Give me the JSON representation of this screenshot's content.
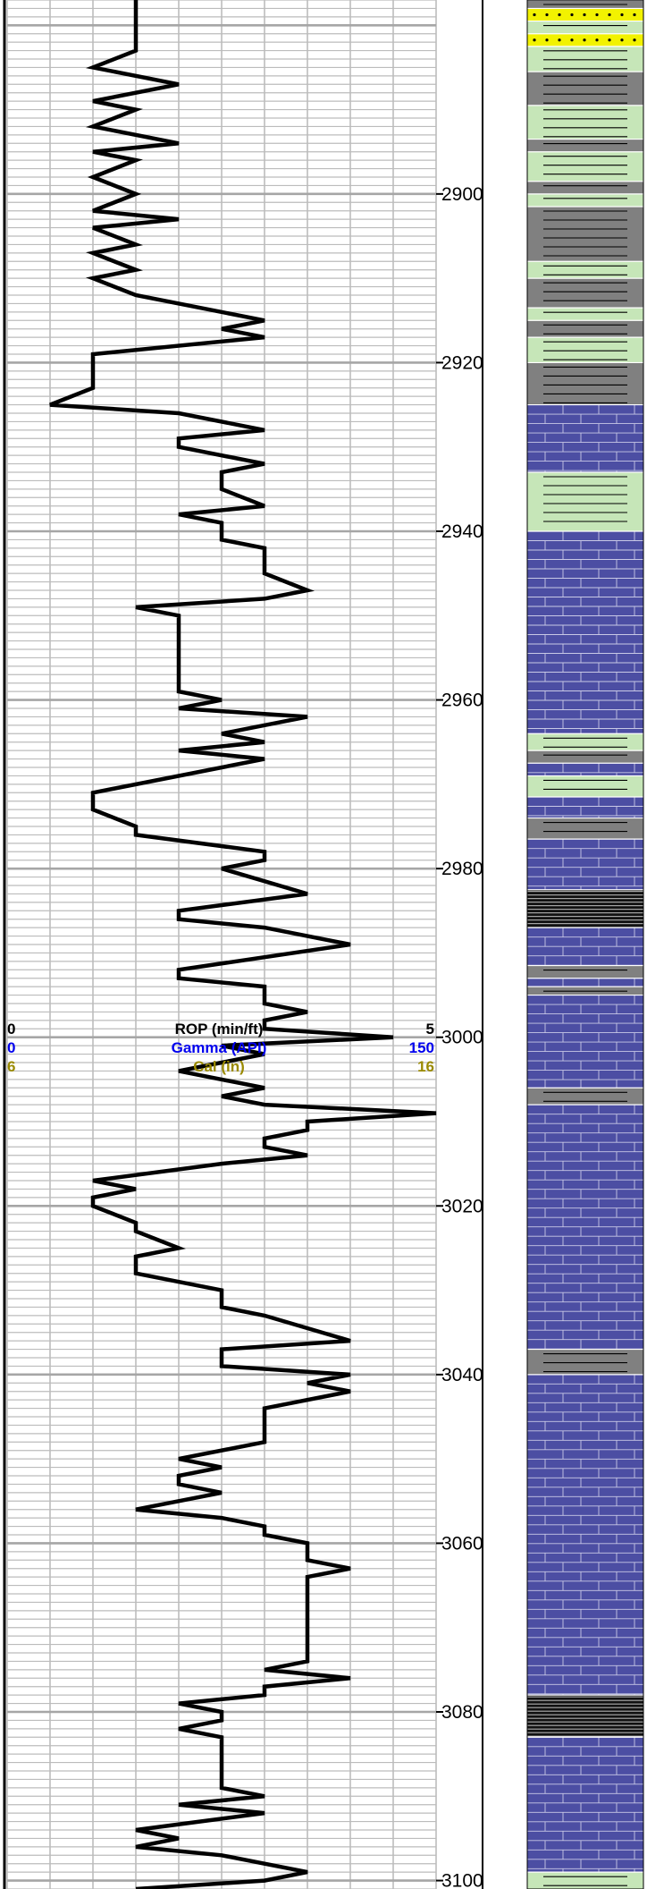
{
  "chart_data": {
    "type": "line",
    "track_header": {
      "rop": {
        "label": "ROP (min/ft)",
        "min": "0",
        "max": "5",
        "color": "#000000"
      },
      "gamma": {
        "label": "Gamma (API)",
        "min": "0",
        "max": "150",
        "color": "#0000ee"
      },
      "cal": {
        "label": "Cal (in)",
        "min": "6",
        "max": "16",
        "color": "#9a8a00"
      }
    },
    "depth_axis": {
      "ylim": [
        2877,
        3101
      ],
      "labels": [
        "2900",
        "2920",
        "2940",
        "2960",
        "2980",
        "3000",
        "3020",
        "3040",
        "3060",
        "3080",
        "3100"
      ]
    },
    "xlim": [
      0,
      5
    ],
    "series": [
      {
        "points": [
          [
            1.5,
            2877
          ],
          [
            1.5,
            2883
          ],
          [
            1.0,
            2885
          ],
          [
            2.0,
            2887
          ],
          [
            1.0,
            2889
          ],
          [
            1.5,
            2890
          ],
          [
            1.0,
            2892
          ],
          [
            2.0,
            2894
          ],
          [
            1.0,
            2895
          ],
          [
            1.5,
            2896
          ],
          [
            1.0,
            2898
          ],
          [
            1.5,
            2900
          ],
          [
            1.0,
            2902
          ],
          [
            2.0,
            2903
          ],
          [
            1.0,
            2904
          ],
          [
            1.5,
            2906
          ],
          [
            1.0,
            2907
          ],
          [
            1.5,
            2909
          ],
          [
            1.0,
            2910
          ],
          [
            1.5,
            2912
          ],
          [
            3.0,
            2915
          ],
          [
            2.5,
            2916
          ],
          [
            3.0,
            2917
          ],
          [
            1.0,
            2919
          ],
          [
            1.0,
            2923
          ],
          [
            0.5,
            2925
          ],
          [
            2.0,
            2926
          ],
          [
            3.0,
            2928
          ],
          [
            2.0,
            2929
          ],
          [
            2.0,
            2930
          ],
          [
            3.0,
            2932
          ],
          [
            2.5,
            2933
          ],
          [
            2.5,
            2935
          ],
          [
            3.0,
            2937
          ],
          [
            2.0,
            2938
          ],
          [
            2.5,
            2939
          ],
          [
            2.5,
            2941
          ],
          [
            3.0,
            2942
          ],
          [
            3.0,
            2945
          ],
          [
            3.5,
            2947
          ],
          [
            3.0,
            2948
          ],
          [
            1.5,
            2949
          ],
          [
            2.0,
            2950
          ],
          [
            2.0,
            2959
          ],
          [
            2.5,
            2960
          ],
          [
            2.0,
            2961
          ],
          [
            3.5,
            2962
          ],
          [
            2.5,
            2964
          ],
          [
            3.0,
            2965
          ],
          [
            2.0,
            2966
          ],
          [
            3.0,
            2967
          ],
          [
            1.0,
            2971
          ],
          [
            1.0,
            2973
          ],
          [
            1.5,
            2975
          ],
          [
            1.5,
            2976
          ],
          [
            3.0,
            2978
          ],
          [
            3.0,
            2979
          ],
          [
            2.5,
            2980
          ],
          [
            3.5,
            2983
          ],
          [
            2.0,
            2985
          ],
          [
            2.0,
            2986
          ],
          [
            3.0,
            2987
          ],
          [
            4.0,
            2989
          ],
          [
            2.0,
            2992
          ],
          [
            2.0,
            2993
          ],
          [
            3.0,
            2994
          ],
          [
            3.0,
            2996
          ],
          [
            3.5,
            2997
          ],
          [
            3.0,
            2998
          ],
          [
            3.0,
            2999
          ],
          [
            4.5,
            3000
          ],
          [
            2.5,
            3001
          ],
          [
            3.0,
            3002
          ],
          [
            2.5,
            3003
          ],
          [
            2.0,
            3004
          ],
          [
            2.5,
            3005
          ],
          [
            3.0,
            3006
          ],
          [
            2.5,
            3007
          ],
          [
            3.0,
            3008
          ],
          [
            5.0,
            3009
          ],
          [
            3.5,
            3010
          ],
          [
            3.5,
            3011
          ],
          [
            3.0,
            3012
          ],
          [
            3.0,
            3013
          ],
          [
            3.5,
            3014
          ],
          [
            2.5,
            3015
          ],
          [
            1.0,
            3017
          ],
          [
            1.5,
            3018
          ],
          [
            1.0,
            3019
          ],
          [
            1.0,
            3020
          ],
          [
            1.5,
            3022
          ],
          [
            1.5,
            3023
          ],
          [
            2.0,
            3025
          ],
          [
            1.5,
            3026
          ],
          [
            1.5,
            3028
          ],
          [
            2.5,
            3030
          ],
          [
            2.5,
            3032
          ],
          [
            3.0,
            3033
          ],
          [
            4.0,
            3036
          ],
          [
            2.5,
            3037
          ],
          [
            2.5,
            3039
          ],
          [
            4.0,
            3040
          ],
          [
            3.5,
            3041
          ],
          [
            4.0,
            3042
          ],
          [
            3.0,
            3044
          ],
          [
            3.0,
            3048
          ],
          [
            2.0,
            3050
          ],
          [
            2.5,
            3051
          ],
          [
            2.0,
            3052
          ],
          [
            2.0,
            3053
          ],
          [
            2.5,
            3054
          ],
          [
            1.5,
            3056
          ],
          [
            2.5,
            3057
          ],
          [
            3.0,
            3058
          ],
          [
            3.0,
            3059
          ],
          [
            3.5,
            3060
          ],
          [
            3.5,
            3062
          ],
          [
            4.0,
            3063
          ],
          [
            3.5,
            3064
          ],
          [
            3.5,
            3074
          ],
          [
            3.0,
            3075
          ],
          [
            4.0,
            3076
          ],
          [
            3.0,
            3077
          ],
          [
            3.0,
            3078
          ],
          [
            2.0,
            3079
          ],
          [
            2.5,
            3080
          ],
          [
            2.5,
            3081
          ],
          [
            2.0,
            3082
          ],
          [
            2.5,
            3083
          ],
          [
            2.5,
            3089
          ],
          [
            3.0,
            3090
          ],
          [
            2.0,
            3091
          ],
          [
            3.0,
            3092
          ],
          [
            1.5,
            3094
          ],
          [
            2.0,
            3095
          ],
          [
            1.5,
            3096
          ],
          [
            2.5,
            3097
          ],
          [
            3.0,
            3098
          ],
          [
            3.5,
            3099
          ],
          [
            3.0,
            3100
          ],
          [
            1.5,
            3101
          ]
        ]
      }
    ],
    "lithology": [
      {
        "from": 2877.0,
        "to": 2878.0,
        "type": "shale"
      },
      {
        "from": 2878.0,
        "to": 2879.5,
        "type": "sand"
      },
      {
        "from": 2879.5,
        "to": 2881.0,
        "type": "siltstone"
      },
      {
        "from": 2881.0,
        "to": 2882.5,
        "type": "sand"
      },
      {
        "from": 2882.5,
        "to": 2885.5,
        "type": "siltstone"
      },
      {
        "from": 2885.5,
        "to": 2889.5,
        "type": "shale"
      },
      {
        "from": 2889.5,
        "to": 2893.5,
        "type": "siltstone"
      },
      {
        "from": 2893.5,
        "to": 2895.0,
        "type": "shale"
      },
      {
        "from": 2895.0,
        "to": 2898.5,
        "type": "siltstone"
      },
      {
        "from": 2898.5,
        "to": 2900.0,
        "type": "shale"
      },
      {
        "from": 2900.0,
        "to": 2901.5,
        "type": "siltstone"
      },
      {
        "from": 2901.5,
        "to": 2908.0,
        "type": "shale"
      },
      {
        "from": 2908.0,
        "to": 2910.0,
        "type": "siltstone"
      },
      {
        "from": 2910.0,
        "to": 2913.5,
        "type": "shale"
      },
      {
        "from": 2913.5,
        "to": 2915.0,
        "type": "siltstone"
      },
      {
        "from": 2915.0,
        "to": 2917.0,
        "type": "shale"
      },
      {
        "from": 2917.0,
        "to": 2920.0,
        "type": "siltstone"
      },
      {
        "from": 2920.0,
        "to": 2925.0,
        "type": "shale"
      },
      {
        "from": 2925.0,
        "to": 2933.0,
        "type": "limestone"
      },
      {
        "from": 2933.0,
        "to": 2940.0,
        "type": "siltstone"
      },
      {
        "from": 2940.0,
        "to": 2964.0,
        "type": "limestone"
      },
      {
        "from": 2964.0,
        "to": 2966.0,
        "type": "siltstone"
      },
      {
        "from": 2966.0,
        "to": 2967.5,
        "type": "shale"
      },
      {
        "from": 2967.5,
        "to": 2969.0,
        "type": "limestone"
      },
      {
        "from": 2969.0,
        "to": 2971.5,
        "type": "siltstone"
      },
      {
        "from": 2971.5,
        "to": 2974.0,
        "type": "limestone"
      },
      {
        "from": 2974.0,
        "to": 2976.5,
        "type": "shale"
      },
      {
        "from": 2976.5,
        "to": 2982.5,
        "type": "limestone"
      },
      {
        "from": 2982.5,
        "to": 2987.0,
        "type": "coal"
      },
      {
        "from": 2987.0,
        "to": 2991.5,
        "type": "limestone"
      },
      {
        "from": 2991.5,
        "to": 2993.0,
        "type": "shale"
      },
      {
        "from": 2993.0,
        "to": 2994.0,
        "type": "limestone"
      },
      {
        "from": 2994.0,
        "to": 2995.0,
        "type": "shale"
      },
      {
        "from": 2995.0,
        "to": 3006.0,
        "type": "limestone"
      },
      {
        "from": 3006.0,
        "to": 3008.0,
        "type": "shale"
      },
      {
        "from": 3008.0,
        "to": 3037.0,
        "type": "limestone"
      },
      {
        "from": 3037.0,
        "to": 3040.0,
        "type": "shale"
      },
      {
        "from": 3040.0,
        "to": 3078.0,
        "type": "limestone"
      },
      {
        "from": 3078.0,
        "to": 3083.0,
        "type": "coal"
      },
      {
        "from": 3083.0,
        "to": 3099.0,
        "type": "limestone"
      },
      {
        "from": 3099.0,
        "to": 3101.0,
        "type": "siltstone"
      }
    ],
    "colors": {
      "limestone": "#4c4ea3",
      "shale": "#808080",
      "siltstone": "#c6e6b8",
      "sand": "#f2f200",
      "coal": "#111111",
      "grid_minor": "#bcbcbc",
      "grid_major": "#a6a6a6"
    }
  }
}
